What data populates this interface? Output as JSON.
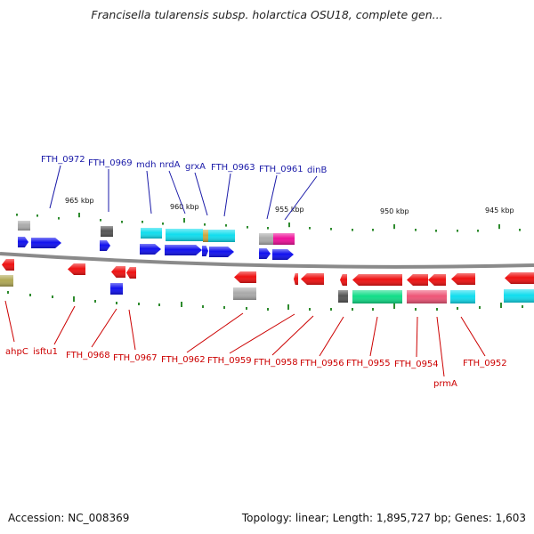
{
  "title": "Francisella tularensis subsp. holarctica OSU18, complete gen...",
  "footer": {
    "accession": "Accession: NC_008369",
    "stats": "Topology: linear; Length: 1,895,727 bp; Genes: 1,603"
  },
  "scale_labels": [
    "965 kbp",
    "960 kbp",
    "955 kbp",
    "950 kbp",
    "945 kbp"
  ],
  "colors": {
    "forward_label": "#1a1aa8",
    "reverse_label": "#cc0000",
    "backbone": "#8a8a8a",
    "tick": "#2e8b2e",
    "blue": "#1111ee",
    "red": "#ee1111",
    "cyan": "#11ddee",
    "green": "#11dd88",
    "pink": "#ee5577",
    "magenta": "#ee1199",
    "gray": "#aaaaaa",
    "dark_gray": "#555555",
    "olive": "#b0a855",
    "gold": "#c8a840"
  },
  "forward_labels": [
    "FTH_0972",
    "FTH_0969",
    "mdh",
    "nrdA",
    "grxA",
    "FTH_0963",
    "FTH_0961",
    "dinB"
  ],
  "reverse_labels": [
    "ahpC",
    "isftu1",
    "FTH_0968",
    "FTH_0967",
    "FTH_0962",
    "FTH_0959",
    "FTH_0958",
    "FTH_0956",
    "FTH_0955",
    "FTH_0954",
    "prmA",
    "FTH_0952"
  ]
}
